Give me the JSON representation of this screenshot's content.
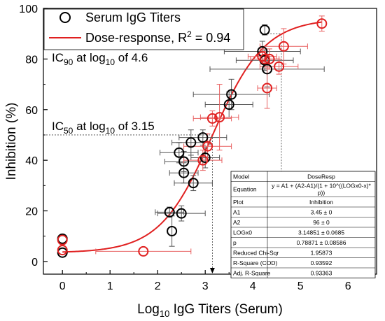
{
  "chart_data": {
    "type": "scatter",
    "xlabel_main": "Log",
    "xlabel_sub": "10",
    "xlabel_rest": " IgG Titers (Serum)",
    "ylabel": "Inhibition (%)",
    "xlim": [
      -0.4,
      6.6
    ],
    "ylim": [
      -5,
      100
    ],
    "xticks": [
      "0",
      "1",
      "2",
      "3",
      "4",
      "5",
      "6"
    ],
    "yticks": [
      "0",
      "20",
      "40",
      "60",
      "80",
      "100"
    ],
    "legend": {
      "series1": "Serum IgG Titers",
      "fit_main": "Dose-response, R",
      "fit_sup": "2",
      "fit_tail": " = 0.94"
    },
    "annotations": {
      "ic90_pre": "IC",
      "ic90_sub": "90",
      "ic90_mid": " at log",
      "ic90_sub2": "10",
      "ic90_post": " of 4.6",
      "ic50_pre": "IC",
      "ic50_sub": "50",
      "ic50_mid": " at log",
      "ic50_sub2": "10",
      "ic50_post": " of 3.15"
    },
    "fit": {
      "A1": 3.45,
      "A2": 96,
      "LOGx0": 3.14851,
      "p": 0.78871
    },
    "ic50_x": 3.15,
    "ic90_x": 4.6,
    "black_points": [
      {
        "x": 0,
        "y": 9,
        "xerr": 0,
        "yerr": 0
      },
      {
        "x": 0,
        "y": 3.5,
        "xerr": 0,
        "yerr": 0
      },
      {
        "x": 2.25,
        "y": 19.5,
        "xerr": 0.3,
        "yerr": 2
      },
      {
        "x": 2.3,
        "y": 12,
        "xerr": 0,
        "yerr": 6
      },
      {
        "x": 2.45,
        "y": 43,
        "xerr": 0.4,
        "yerr": 4
      },
      {
        "x": 2.5,
        "y": 19,
        "xerr": 0.5,
        "yerr": 3
      },
      {
        "x": 2.55,
        "y": 39.5,
        "xerr": 0.4,
        "yerr": 4
      },
      {
        "x": 2.55,
        "y": 35,
        "xerr": 0.3,
        "yerr": 4
      },
      {
        "x": 2.7,
        "y": 47,
        "xerr": 0.4,
        "yerr": 5
      },
      {
        "x": 2.75,
        "y": 31,
        "xerr": 0.4,
        "yerr": 3
      },
      {
        "x": 2.95,
        "y": 49,
        "xerr": 0.5,
        "yerr": 3
      },
      {
        "x": 3.0,
        "y": 41,
        "xerr": 0.3,
        "yerr": 4
      },
      {
        "x": 3.5,
        "y": 62,
        "xerr": 0.5,
        "yerr": 5
      },
      {
        "x": 3.55,
        "y": 66,
        "xerr": 0.8,
        "yerr": 6
      },
      {
        "x": 4.2,
        "y": 83,
        "xerr": 0.8,
        "yerr": 4
      },
      {
        "x": 4.25,
        "y": 79.5,
        "xerr": 0.6,
        "yerr": 4
      },
      {
        "x": 4.3,
        "y": 76,
        "xerr": 1.2,
        "yerr": 7
      },
      {
        "x": 4.25,
        "y": 91.5,
        "xerr": 0,
        "yerr": 2
      }
    ],
    "red_points": [
      {
        "x": 0,
        "y": 8.5,
        "xerr": 0,
        "yerr": 0
      },
      {
        "x": 0,
        "y": 4.5,
        "xerr": 0,
        "yerr": 0
      },
      {
        "x": 1.7,
        "y": 4,
        "xerr": 1.0,
        "yerr": 0
      },
      {
        "x": 2.95,
        "y": 40,
        "xerr": 0.4,
        "yerr": 4
      },
      {
        "x": 3.05,
        "y": 45.5,
        "xerr": 0.5,
        "yerr": 5
      },
      {
        "x": 3.15,
        "y": 56.5,
        "xerr": 0.4,
        "yerr": 3
      },
      {
        "x": 3.3,
        "y": 57,
        "xerr": 0.4,
        "yerr": 13
      },
      {
        "x": 4.2,
        "y": 81,
        "xerr": 0.3,
        "yerr": 3
      },
      {
        "x": 4.25,
        "y": 80,
        "xerr": 0.3,
        "yerr": 3
      },
      {
        "x": 4.3,
        "y": 68.5,
        "xerr": 0.2,
        "yerr": 8
      },
      {
        "x": 4.35,
        "y": 80,
        "xerr": 0.2,
        "yerr": 4
      },
      {
        "x": 4.55,
        "y": 77,
        "xerr": 0.4,
        "yerr": 3
      },
      {
        "x": 4.65,
        "y": 85,
        "xerr": 0.5,
        "yerr": 7
      },
      {
        "x": 5.45,
        "y": 94,
        "xerr": 0,
        "yerr": 3
      }
    ],
    "table": {
      "rows": [
        {
          "label": "Model",
          "value": "DoseResp"
        },
        {
          "label": "Equation",
          "value": "y = A1 + (A2-A1)/(1 + 10^((LOGx0-x)*p))"
        },
        {
          "label": "Plot",
          "value": "Inhibition"
        },
        {
          "label": "A1",
          "value": "3.45 ± 0"
        },
        {
          "label": "A2",
          "value": "96 ± 0"
        },
        {
          "label": "LOGx0",
          "value": "3.14851 ± 0.0685"
        },
        {
          "label": "p",
          "value": "0.78871 ± 0.08586"
        },
        {
          "label": "Reduced Chi-Sqr",
          "value": "1.95873"
        },
        {
          "label": "R-Square (COD)",
          "value": "0.93592"
        },
        {
          "label": "Adj. R-Square",
          "value": "0.93363"
        }
      ]
    },
    "colors": {
      "black_series": "#000000",
      "red_series": "#e02020",
      "fit_line": "#e02020",
      "error_bar": "#555555"
    }
  }
}
